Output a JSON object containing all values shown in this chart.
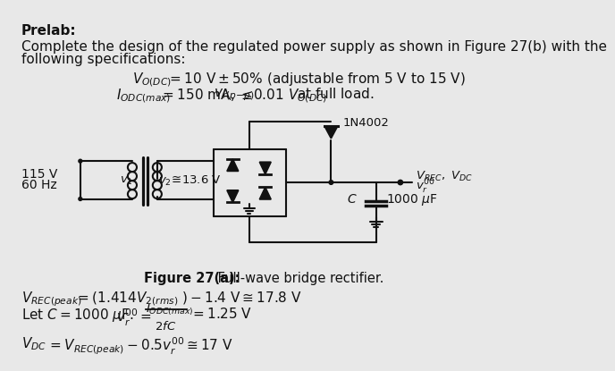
{
  "bg_color": "#e8e8e8",
  "title_text": "Prelab:",
  "line1": "Complete the design of the regulated power supply as shown in Figure 27(b) with the",
  "line2": "following specifications:",
  "fig_caption_bold": "Figure 27(a):",
  "fig_caption_rest": " Full-wave bridge rectifier.",
  "text_color": "#111111",
  "circuit_color": "#111111"
}
